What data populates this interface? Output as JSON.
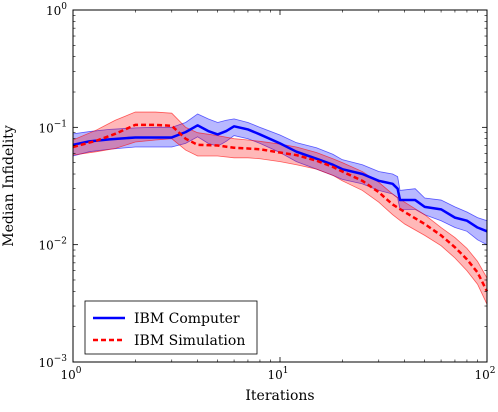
{
  "chart_data": {
    "type": "line",
    "title": "",
    "xlabel": "Iterations",
    "ylabel": "Median Infidelity",
    "xscale": "log",
    "yscale": "log",
    "xlim": [
      1,
      100
    ],
    "ylim": [
      0.001,
      1
    ],
    "grid": false,
    "legend_position": "bottom-left",
    "x_ticks": [
      {
        "value": 1,
        "base": "10",
        "exp": "0"
      },
      {
        "value": 10,
        "base": "10",
        "exp": "1"
      },
      {
        "value": 100,
        "base": "10",
        "exp": "2"
      }
    ],
    "y_ticks": [
      {
        "value": 0.001,
        "base": "10",
        "exp": "−3"
      },
      {
        "value": 0.01,
        "base": "10",
        "exp": "−2"
      },
      {
        "value": 0.1,
        "base": "10",
        "exp": "−1"
      },
      {
        "value": 1,
        "base": "10",
        "exp": "0"
      }
    ],
    "series": [
      {
        "name": "IBM Computer",
        "color": "#0000ff",
        "style": "solid",
        "x": [
          1,
          1.2,
          1.5,
          2,
          2.5,
          3,
          3.5,
          4,
          4.5,
          5,
          5.5,
          6,
          7,
          8,
          10,
          12,
          15,
          18,
          20,
          25,
          30,
          35,
          37,
          38,
          45,
          50,
          60,
          70,
          80,
          90,
          100
        ],
        "y": [
          0.071,
          0.076,
          0.079,
          0.082,
          0.082,
          0.082,
          0.091,
          0.104,
          0.093,
          0.087,
          0.093,
          0.102,
          0.096,
          0.087,
          0.073,
          0.062,
          0.054,
          0.048,
          0.044,
          0.04,
          0.035,
          0.033,
          0.03,
          0.024,
          0.024,
          0.021,
          0.02,
          0.017,
          0.016,
          0.014,
          0.013
        ],
        "upper": [
          0.088,
          0.092,
          0.096,
          0.099,
          0.1,
          0.1,
          0.11,
          0.13,
          0.118,
          0.11,
          0.115,
          0.118,
          0.11,
          0.1,
          0.086,
          0.074,
          0.067,
          0.059,
          0.053,
          0.048,
          0.042,
          0.04,
          0.038,
          0.029,
          0.03,
          0.025,
          0.024,
          0.021,
          0.019,
          0.017,
          0.016
        ],
        "lower": [
          0.057,
          0.062,
          0.065,
          0.068,
          0.068,
          0.068,
          0.073,
          0.083,
          0.073,
          0.069,
          0.076,
          0.085,
          0.08,
          0.073,
          0.061,
          0.051,
          0.044,
          0.039,
          0.036,
          0.033,
          0.029,
          0.027,
          0.025,
          0.02,
          0.02,
          0.018,
          0.016,
          0.014,
          0.013,
          0.011,
          0.01
        ]
      },
      {
        "name": "IBM Simulation",
        "color": "#ff0000",
        "style": "dashed",
        "x": [
          1,
          1.3,
          1.6,
          2,
          2.5,
          3,
          3.5,
          4,
          5,
          6,
          7,
          8,
          10,
          12,
          15,
          18,
          20,
          25,
          30,
          35,
          40,
          50,
          60,
          70,
          80,
          90,
          100
        ],
        "y": [
          0.068,
          0.077,
          0.088,
          0.105,
          0.105,
          0.103,
          0.08,
          0.071,
          0.07,
          0.067,
          0.066,
          0.065,
          0.061,
          0.058,
          0.052,
          0.046,
          0.042,
          0.035,
          0.028,
          0.022,
          0.019,
          0.015,
          0.012,
          0.0095,
          0.0075,
          0.0058,
          0.004
        ],
        "upper": [
          0.078,
          0.095,
          0.115,
          0.135,
          0.135,
          0.132,
          0.1,
          0.09,
          0.085,
          0.08,
          0.078,
          0.076,
          0.072,
          0.068,
          0.061,
          0.054,
          0.05,
          0.042,
          0.034,
          0.027,
          0.023,
          0.018,
          0.014,
          0.0115,
          0.0093,
          0.0072,
          0.0052
        ],
        "lower": [
          0.058,
          0.062,
          0.066,
          0.075,
          0.078,
          0.08,
          0.064,
          0.057,
          0.057,
          0.055,
          0.055,
          0.054,
          0.051,
          0.048,
          0.044,
          0.039,
          0.035,
          0.029,
          0.023,
          0.018,
          0.015,
          0.012,
          0.0098,
          0.0077,
          0.006,
          0.0046,
          0.0031
        ]
      }
    ]
  }
}
